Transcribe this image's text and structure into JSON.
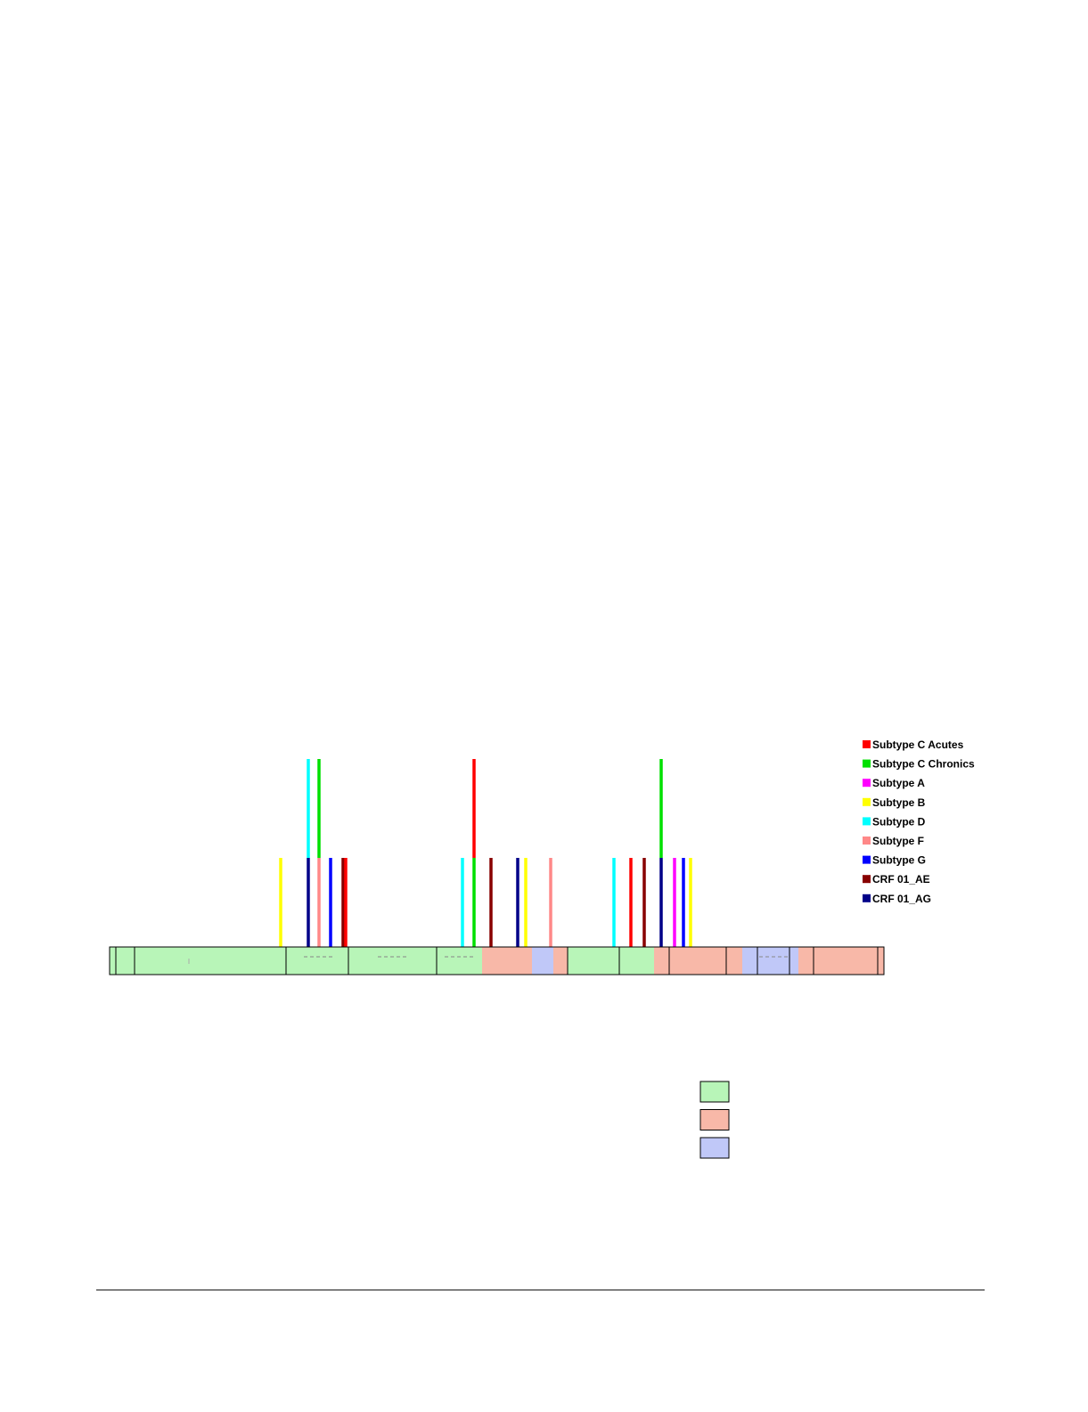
{
  "legend": {
    "items": [
      {
        "label": "Subtype C Acutes",
        "color": "#ff0000"
      },
      {
        "label": "Subtype C Chronics",
        "color": "#00e000"
      },
      {
        "label": "Subtype A",
        "color": "#ff00ff"
      },
      {
        "label": "Subtype B",
        "color": "#ffff00"
      },
      {
        "label": "Subtype D",
        "color": "#00ffff"
      },
      {
        "label": "Subtype F",
        "color": "#ff8888"
      },
      {
        "label": "Subtype G",
        "color": "#0000ff"
      },
      {
        "label": "CRF 01_AE",
        "color": "#880000"
      },
      {
        "label": "CRF 01_AG",
        "color": "#000088"
      }
    ]
  },
  "genome_segments": [
    {
      "color": "#b8f5b8"
    },
    {
      "color": "#b8f5b8"
    },
    {
      "color": "#b8f5b8"
    },
    {
      "color": "#b8f5b8"
    },
    {
      "color": "#b8f5b8"
    },
    {
      "color": "#b8f5b8"
    },
    {
      "color": "#f8b8a8"
    },
    {
      "color": "#c0c8f8"
    },
    {
      "color": "#f8b8a8"
    },
    {
      "color": "#b8f5b8"
    },
    {
      "color": "#b8f5b8"
    },
    {
      "color": "#f8b8a8"
    },
    {
      "color": "#f8b8a8"
    },
    {
      "color": "#f8b8a8"
    },
    {
      "color": "#c0c8f8"
    },
    {
      "color": "#c0c8f8"
    },
    {
      "color": "#c0c8f8"
    },
    {
      "color": "#f8b8a8"
    },
    {
      "color": "#f8b8a8"
    },
    {
      "color": "#f8b8a8"
    }
  ],
  "region_legend": {
    "swatches": [
      {
        "color": "#b8f5b8"
      },
      {
        "color": "#f8b8a8"
      },
      {
        "color": "#c0c8f8"
      }
    ]
  },
  "colors": {
    "footer_rule": "#000000",
    "outline": "#000000"
  }
}
